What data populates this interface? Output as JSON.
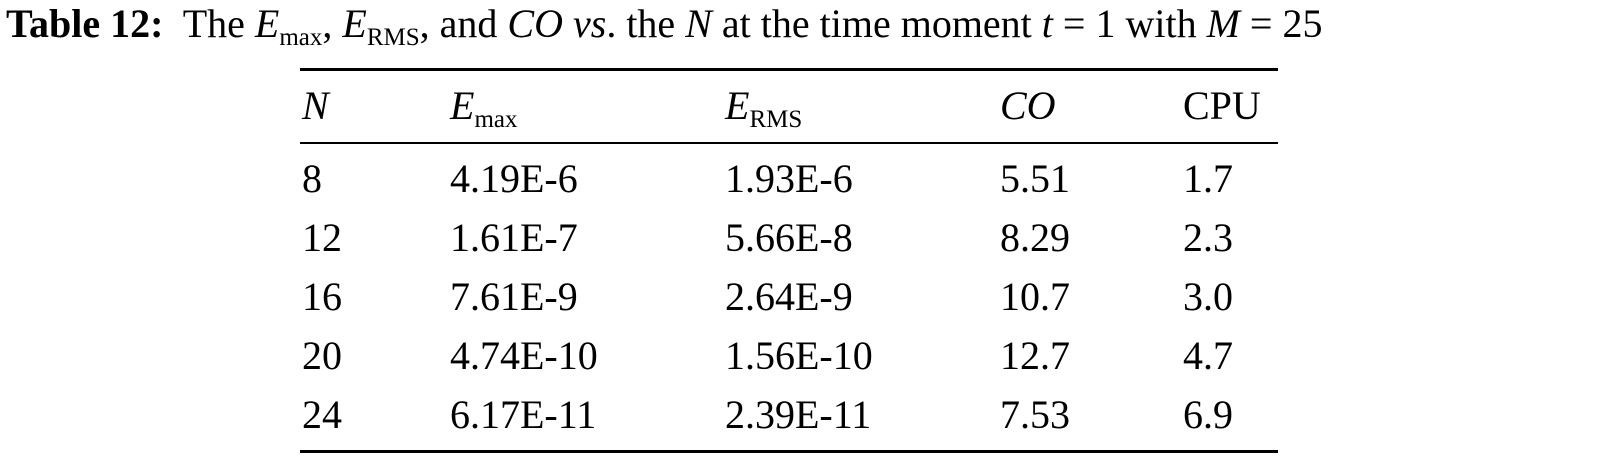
{
  "caption": {
    "label": "Table 12:",
    "parts": [
      "The ",
      "E",
      "max",
      ", ",
      "E",
      "RMS",
      ", and ",
      "CO vs",
      ". the ",
      "N",
      " at the time moment ",
      "t",
      " = 1 with ",
      "M",
      " = 25"
    ]
  },
  "table": {
    "header": [
      {
        "symbol": "N"
      },
      {
        "symbol": "E",
        "subscript": "max"
      },
      {
        "symbol": "E",
        "subscript": "RMS"
      },
      {
        "symbol": "CO"
      },
      {
        "symbol": "CPU"
      }
    ],
    "rows": [
      [
        "8",
        "4.19E-6",
        "1.93E-6",
        "5.51",
        "1.7"
      ],
      [
        "12",
        "1.61E-7",
        "5.66E-8",
        "8.29",
        "2.3"
      ],
      [
        "16",
        "7.61E-9",
        "2.64E-9",
        "10.7",
        "3.0"
      ],
      [
        "20",
        "4.74E-10",
        "1.56E-10",
        "12.7",
        "4.7"
      ],
      [
        "24",
        "6.17E-11",
        "2.39E-11",
        "7.53",
        "6.9"
      ]
    ]
  }
}
